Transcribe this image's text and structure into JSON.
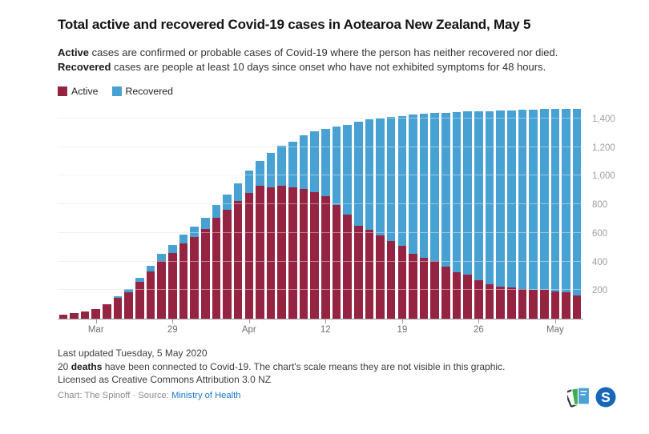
{
  "header": {
    "title": "Total active and recovered Covid-19 cases in Aotearoa New Zealand, May 5",
    "description": {
      "line1": {
        "bold": "Active",
        "rest": " cases are confirmed or probable cases of Covid-19 where the person has neither recovered nor died."
      },
      "line2": {
        "bold": "Recovered",
        "rest": " cases are people at least 10 days since onset who have not exhibited symptoms for 48 hours."
      }
    }
  },
  "legend": [
    {
      "label": "Active",
      "color": "#952342"
    },
    {
      "label": "Recovered",
      "color": "#47a1d3"
    }
  ],
  "chart_data": {
    "type": "bar",
    "stacked": true,
    "title": "Total active and recovered Covid-19 cases in Aotearoa New Zealand, May 5",
    "xlabel": "",
    "ylabel": "",
    "grid": true,
    "legend_position": "top-left",
    "ylim": [
      0,
      1484
    ],
    "x": [
      "Mar 19",
      "Mar 20",
      "Mar 21",
      "Mar 22",
      "Mar 23",
      "Mar 24",
      "Mar 25",
      "Mar 26",
      "Mar 27",
      "Mar 28",
      "Mar 29",
      "Mar 30",
      "Mar 31",
      "Apr 1",
      "Apr 2",
      "Apr 3",
      "Apr 4",
      "Apr 5",
      "Apr 6",
      "Apr 7",
      "Apr 8",
      "Apr 9",
      "Apr 10",
      "Apr 11",
      "Apr 12",
      "Apr 13",
      "Apr 14",
      "Apr 15",
      "Apr 16",
      "Apr 17",
      "Apr 18",
      "Apr 19",
      "Apr 20",
      "Apr 21",
      "Apr 22",
      "Apr 23",
      "Apr 24",
      "Apr 25",
      "Apr 26",
      "Apr 27",
      "Apr 28",
      "Apr 29",
      "Apr 30",
      "May 1",
      "May 2",
      "May 3",
      "May 4",
      "May 5"
    ],
    "series": [
      {
        "name": "Active",
        "color": "#952342",
        "values": [
          28,
          39,
          52,
          66,
          102,
          143,
          183,
          256,
          331,
          401,
          457,
          525,
          572,
          625,
          704,
          764,
          822,
          882,
          929,
          918,
          927,
          921,
          908,
          886,
          855,
          798,
          729,
          649,
          622,
          582,
          544,
          507,
          454,
          426,
          401,
          365,
          326,
          310,
          271,
          239,
          226,
          216,
          208,
          201,
          201,
          191,
          187,
          164
        ]
      },
      {
        "name": "Recovered",
        "color": "#47a1d3",
        "values": [
          0,
          0,
          0,
          0,
          0,
          12,
          22,
          27,
          37,
          50,
          56,
          63,
          74,
          82,
          92,
          103,
          127,
          156,
          176,
          241,
          282,
          317,
          373,
          422,
          471,
          546,
          628,
          728,
          770,
          816,
          867,
          912,
          974,
          1006,
          1036,
          1075,
          1118,
          1142,
          1180,
          1214,
          1229,
          1241,
          1252,
          1258,
          1266,
          1276,
          1280,
          1302
        ]
      }
    ],
    "yticks": [
      {
        "value": 200,
        "label": "200"
      },
      {
        "value": 400,
        "label": "400"
      },
      {
        "value": 600,
        "label": "600"
      },
      {
        "value": 800,
        "label": "800"
      },
      {
        "value": 1000,
        "label": "1,000"
      },
      {
        "value": 1200,
        "label": "1,200"
      },
      {
        "value": 1400,
        "label": "1,400"
      }
    ],
    "xticks": [
      {
        "index": 3,
        "label": "Mar"
      },
      {
        "index": 10,
        "label": "29"
      },
      {
        "index": 17,
        "label": "Apr"
      },
      {
        "index": 24,
        "label": "12"
      },
      {
        "index": 31,
        "label": "19"
      },
      {
        "index": 38,
        "label": "26"
      },
      {
        "index": 45,
        "label": "May"
      }
    ]
  },
  "notes": {
    "line1": "Last updated Tuesday, 5 May 2020",
    "line2_pre": "20 ",
    "line2_bold": "deaths",
    "line2_rest": " have been connected to Covid-19. The chart's scale means they are not visible in this graphic.",
    "line3": "Licensed as Creative Commons Attribution 3.0 NZ"
  },
  "byline": {
    "prefix": "Chart: The Spinoff · Source: ",
    "source_link": "Ministry of Health"
  }
}
